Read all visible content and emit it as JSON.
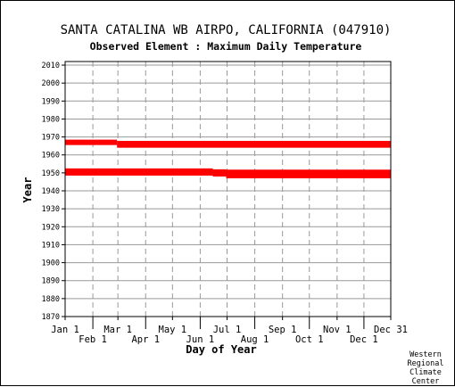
{
  "chart_data": {
    "type": "bar",
    "title": "SANTA CATALINA WB AIRPO, CALIFORNIA   (047910)",
    "subtitle": "Observed Element : Maximum Daily Temperature",
    "xlabel": "Day of Year",
    "ylabel": "Year",
    "ylim": [
      1870,
      2012
    ],
    "yticks": [
      "1870",
      "1880",
      "1890",
      "1900",
      "1910",
      "1920",
      "1930",
      "1940",
      "1950",
      "1960",
      "1970",
      "1980",
      "1990",
      "2000",
      "2010"
    ],
    "xlim": [
      1,
      365
    ],
    "xticks": [
      {
        "label": "Jan 1",
        "day": 1,
        "row": 1
      },
      {
        "label": "Feb 1",
        "day": 32,
        "row": 2
      },
      {
        "label": "Mar 1",
        "day": 60,
        "row": 1
      },
      {
        "label": "Apr 1",
        "day": 91,
        "row": 2
      },
      {
        "label": "May 1",
        "day": 121,
        "row": 1
      },
      {
        "label": "Jun 1",
        "day": 152,
        "row": 2
      },
      {
        "label": "Jul 1",
        "day": 182,
        "row": 1
      },
      {
        "label": "Aug 1",
        "day": 213,
        "row": 2
      },
      {
        "label": "Sep 1",
        "day": 244,
        "row": 1
      },
      {
        "label": "Oct 1",
        "day": 274,
        "row": 2
      },
      {
        "label": "Nov 1",
        "day": 305,
        "row": 1
      },
      {
        "label": "Dec 1",
        "day": 335,
        "row": 2
      },
      {
        "label": "Dec 31",
        "day": 365,
        "row": 1
      }
    ],
    "grid": true,
    "bar_color": "#ff0000",
    "series": [
      {
        "year_min": 1965.5,
        "year_max": 1968.5,
        "day_start": 1,
        "day_end": 59
      },
      {
        "year_min": 1964,
        "year_max": 1967.8,
        "day_start": 59,
        "day_end": 365
      },
      {
        "year_min": 1948.5,
        "year_max": 1952.5,
        "day_start": 1,
        "day_end": 166
      },
      {
        "year_min": 1948,
        "year_max": 1952,
        "day_start": 166,
        "day_end": 181
      },
      {
        "year_min": 1947,
        "year_max": 1951.8,
        "day_start": 181,
        "day_end": 365
      }
    ]
  },
  "credit": [
    "Western",
    "Regional",
    "Climate",
    "Center"
  ]
}
